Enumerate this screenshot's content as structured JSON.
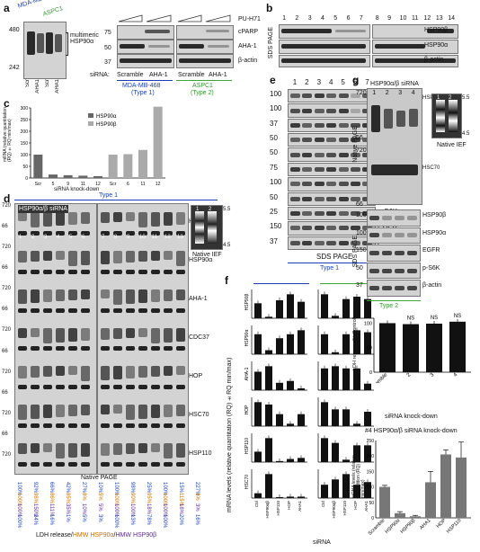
{
  "panels": {
    "a": {
      "letter": "a",
      "cell_labels": [
        "MDA-MB-468",
        "ASPC1"
      ],
      "mw_left": [
        "480",
        "242"
      ],
      "multimeric": "multimeric HSP90α",
      "lane_labels": [
        "Scr",
        "AHA1",
        "Scr",
        "AHA1"
      ],
      "right_rows": [
        "PU-H71",
        "cPARP",
        "AHA-1",
        "β-actin"
      ],
      "mw_right": [
        "75",
        "50",
        "37"
      ],
      "sirna": "siRNA:",
      "groups": [
        "Scramble",
        "AHA-1",
        "Scramble",
        "AHA-1"
      ],
      "types": [
        "MDA-MB-468",
        "(Type 1)",
        "ASPC1",
        "(Type 2)"
      ]
    },
    "b": {
      "letter": "b",
      "lanes_left": [
        "1",
        "2",
        "3",
        "4",
        "5",
        "6",
        "7"
      ],
      "lanes_right": [
        "8",
        "9",
        "10",
        "11",
        "12",
        "13",
        "14"
      ],
      "rows": [
        "HSP90β",
        "HSP90α",
        "β-actin"
      ],
      "side": "SDS PAGE"
    },
    "c": {
      "letter": "c",
      "ylabel": "mRNA (relative quantitation (RQ) ±RQ min/max)",
      "yticks": [
        "0",
        "50",
        "100",
        "150",
        "200",
        "250",
        "300"
      ],
      "xlabel": "siRNA knock-down",
      "legend": [
        "HSP90α",
        "HSP90β"
      ]
    },
    "d": {
      "letter": "d",
      "title": "HSP90α/β siRNA",
      "type": "Type 1",
      "mw": [
        "720",
        "66",
        "720",
        "66",
        "720",
        "66",
        "720",
        "66",
        "720",
        "66",
        "720",
        "66",
        "720"
      ],
      "lanes": [
        "1",
        "2",
        "3",
        "4",
        "5",
        "6",
        "7",
        "8",
        "9",
        "10",
        "11",
        "12",
        "13"
      ],
      "rows": [
        "HSP90β",
        "HSP90α",
        "AHA-1",
        "CDC37",
        "HOP",
        "HSC70",
        "HSP110"
      ],
      "ief_lanes": [
        "1",
        "2"
      ],
      "ief_ticks": [
        "5.5",
        "4.5"
      ],
      "ief_label": "Native IEF",
      "bottom": "Native PAGE",
      "pct_rows": [
        [
          "100%",
          "100%",
          "100%",
          "100%"
        ],
        [
          "92%",
          "98%",
          "150%",
          "24%"
        ],
        [
          "66%",
          "86%",
          "111%",
          "16%"
        ],
        [
          "42%",
          "85%",
          "35%",
          "1%"
        ],
        [
          "27%",
          "8%",
          "10%",
          "5%"
        ],
        [
          "10%",
          "5%",
          "5%",
          "3%"
        ],
        [
          "100%",
          "100%",
          "100%",
          "100%"
        ],
        [
          "98%",
          "90%",
          "100%",
          "13%"
        ],
        [
          "25%",
          "95%",
          "18%",
          "78%"
        ],
        [
          "100%",
          "100%",
          "100%",
          "100%"
        ],
        [
          "15%",
          "115%",
          "18%",
          "20%"
        ],
        [
          "227%",
          "3%",
          "3%",
          "16%"
        ]
      ],
      "legend": [
        "LDH release",
        "/",
        "HMW HSP90α",
        "/",
        "HMW HSP90β"
      ]
    },
    "e": {
      "letter": "e",
      "lanes": [
        "1",
        "2",
        "3",
        "4",
        "5",
        "6",
        "7"
      ],
      "rows": [
        "HSP90α",
        "HSP90β",
        "AHA-1",
        "CDC37",
        "HOP",
        "HSC70",
        "HSP110",
        "S6K",
        "p-S6K",
        "EGFR",
        "β-actin"
      ],
      "mw": [
        "100",
        "100",
        "37",
        "50",
        "50",
        "75",
        "100",
        "50",
        "25",
        "150",
        "37"
      ],
      "bottom": "SDS PAGE",
      "type": "Type 1"
    },
    "f": {
      "letter": "f",
      "ylabel": "mRNA levels (relative quantitation (RQ) ±RQ min/max)",
      "row_labels": [
        "HSP90β",
        "HSP90α",
        "AHA-1",
        "HOP",
        "HSP110",
        "HSC70"
      ],
      "xcats": [
        "Ctrl",
        "HSP90αβ",
        "HSP110",
        "HOP",
        "AHA1"
      ],
      "xlabel": "siRNA"
    },
    "g": {
      "letter": "g",
      "title": "HSP90α/β siRNA",
      "lanes": [
        "1",
        "2",
        "3",
        "4"
      ],
      "native_rows": [
        "HSP90β",
        "HSC70"
      ],
      "native_side": "Native PAGE",
      "mw_native": [
        "720",
        "66",
        "720",
        "66"
      ],
      "ief_lanes": [
        "1",
        "2"
      ],
      "ief_ticks": [
        "5.5",
        "4.5"
      ],
      "ief_label": "Native IEF",
      "sds_rows": [
        "HSP90β",
        "HSP90α",
        "EGFR",
        "p-S6K",
        "β-actin"
      ],
      "mw_sds": [
        "100",
        "100",
        "150",
        "50",
        "37"
      ],
      "sds_side": "SDS PAGE",
      "type": "Type 2",
      "ldh_ylabel": "LDH release (% Control)",
      "ldh_xlabel": "siRNA knock-down",
      "ldh_cats": [
        "Scramble",
        "2",
        "3",
        "4"
      ],
      "ldh_ns": [
        "NS",
        "NS",
        "NS"
      ],
      "ldh_yticks": [
        "0",
        "50",
        "100"
      ],
      "mrna_title": "#4 HSP90α/β siRNA knock-down",
      "mrna_ylabel": "mRNA levels (relative quantitation (RQ) ± RQ min/max)",
      "mrna_cats": [
        "Scramble",
        "HSP90α",
        "HSP90β",
        "AHA1",
        "HOP",
        "HSP110"
      ],
      "mrna_yticks": [
        "0",
        "50",
        "100",
        "150",
        "200",
        "250"
      ]
    }
  },
  "chart_data": [
    {
      "type": "bar",
      "panel": "c",
      "categories": [
        "Scr",
        "5",
        "9",
        "11",
        "12",
        "Scr",
        "6",
        "11",
        "12"
      ],
      "series": [
        {
          "name": "HSP90α",
          "values": [
            100,
            15,
            12,
            10,
            8,
            null,
            null,
            null,
            null
          ]
        },
        {
          "name": "HSP90β",
          "values": [
            null,
            null,
            null,
            null,
            null,
            100,
            102,
            120,
            305
          ]
        }
      ],
      "xlabel": "siRNA knock-down",
      "ylabel": "mRNA (relative quantitation (RQ) ±RQ min/max)",
      "ylim": [
        0,
        300
      ]
    },
    {
      "type": "bar",
      "panel": "f",
      "categories": [
        "Ctrl",
        "HSP90αβ",
        "HSP110",
        "HOP",
        "AHA1"
      ],
      "series": [
        {
          "name": "HSP90β Type 1",
          "values": [
            1.0,
            0.1,
            1.2,
            1.6,
            1.1
          ]
        },
        {
          "name": "HSP90β Type 2",
          "values": [
            1.0,
            0.1,
            0.8,
            0.9,
            0.8
          ]
        },
        {
          "name": "HSP90α Type 1",
          "values": [
            1.0,
            0.2,
            0.8,
            1.0,
            1.2
          ]
        },
        {
          "name": "HSP90α Type 2",
          "values": [
            1.0,
            0.1,
            1.0,
            1.2,
            1.1
          ]
        },
        {
          "name": "AHA-1 Type 1",
          "values": [
            1.0,
            1.3,
            0.4,
            0.5,
            0.1
          ]
        },
        {
          "name": "AHA-1 Type 2",
          "values": [
            1.0,
            1.1,
            1.0,
            1.0,
            0.3
          ]
        },
        {
          "name": "HOP Type 1",
          "values": [
            1.0,
            0.9,
            0.5,
            0.1,
            0.5
          ]
        },
        {
          "name": "HOP Type 2",
          "values": [
            1.0,
            0.7,
            0.7,
            0.1,
            0.6
          ]
        },
        {
          "name": "HSP110 Type 1",
          "values": [
            1.0,
            2.3,
            0.1,
            0.3,
            0.4
          ]
        },
        {
          "name": "HSP110 Type 2",
          "values": [
            1.0,
            0.8,
            0.1,
            0.7,
            0.7
          ]
        },
        {
          "name": "HSC70 Type 1",
          "values": [
            1.0,
            5.0,
            0.2,
            0.3,
            0.3
          ]
        },
        {
          "name": "HSC70 Type 2",
          "values": [
            1.0,
            1.4,
            1.8,
            1.0,
            1.2
          ]
        }
      ],
      "xlabel": "siRNA"
    },
    {
      "type": "bar",
      "panel": "g-ldh",
      "categories": [
        "Scramble",
        "2",
        "3",
        "4"
      ],
      "values": [
        100,
        98,
        99,
        103
      ],
      "ylabel": "LDH release (% Control)",
      "xlabel": "siRNA knock-down",
      "ylim": [
        0,
        110
      ]
    },
    {
      "type": "bar",
      "panel": "g-mrna",
      "categories": [
        "Scramble",
        "HSP90α",
        "HSP90β",
        "AHA1",
        "HOP",
        "HSP110"
      ],
      "values": [
        100,
        15,
        5,
        115,
        205,
        195
      ],
      "errors": [
        5,
        5,
        3,
        35,
        15,
        50
      ],
      "ylabel": "mRNA levels (relative quantitation (RQ) ± RQ min/max)",
      "ylim": [
        0,
        250
      ]
    }
  ]
}
